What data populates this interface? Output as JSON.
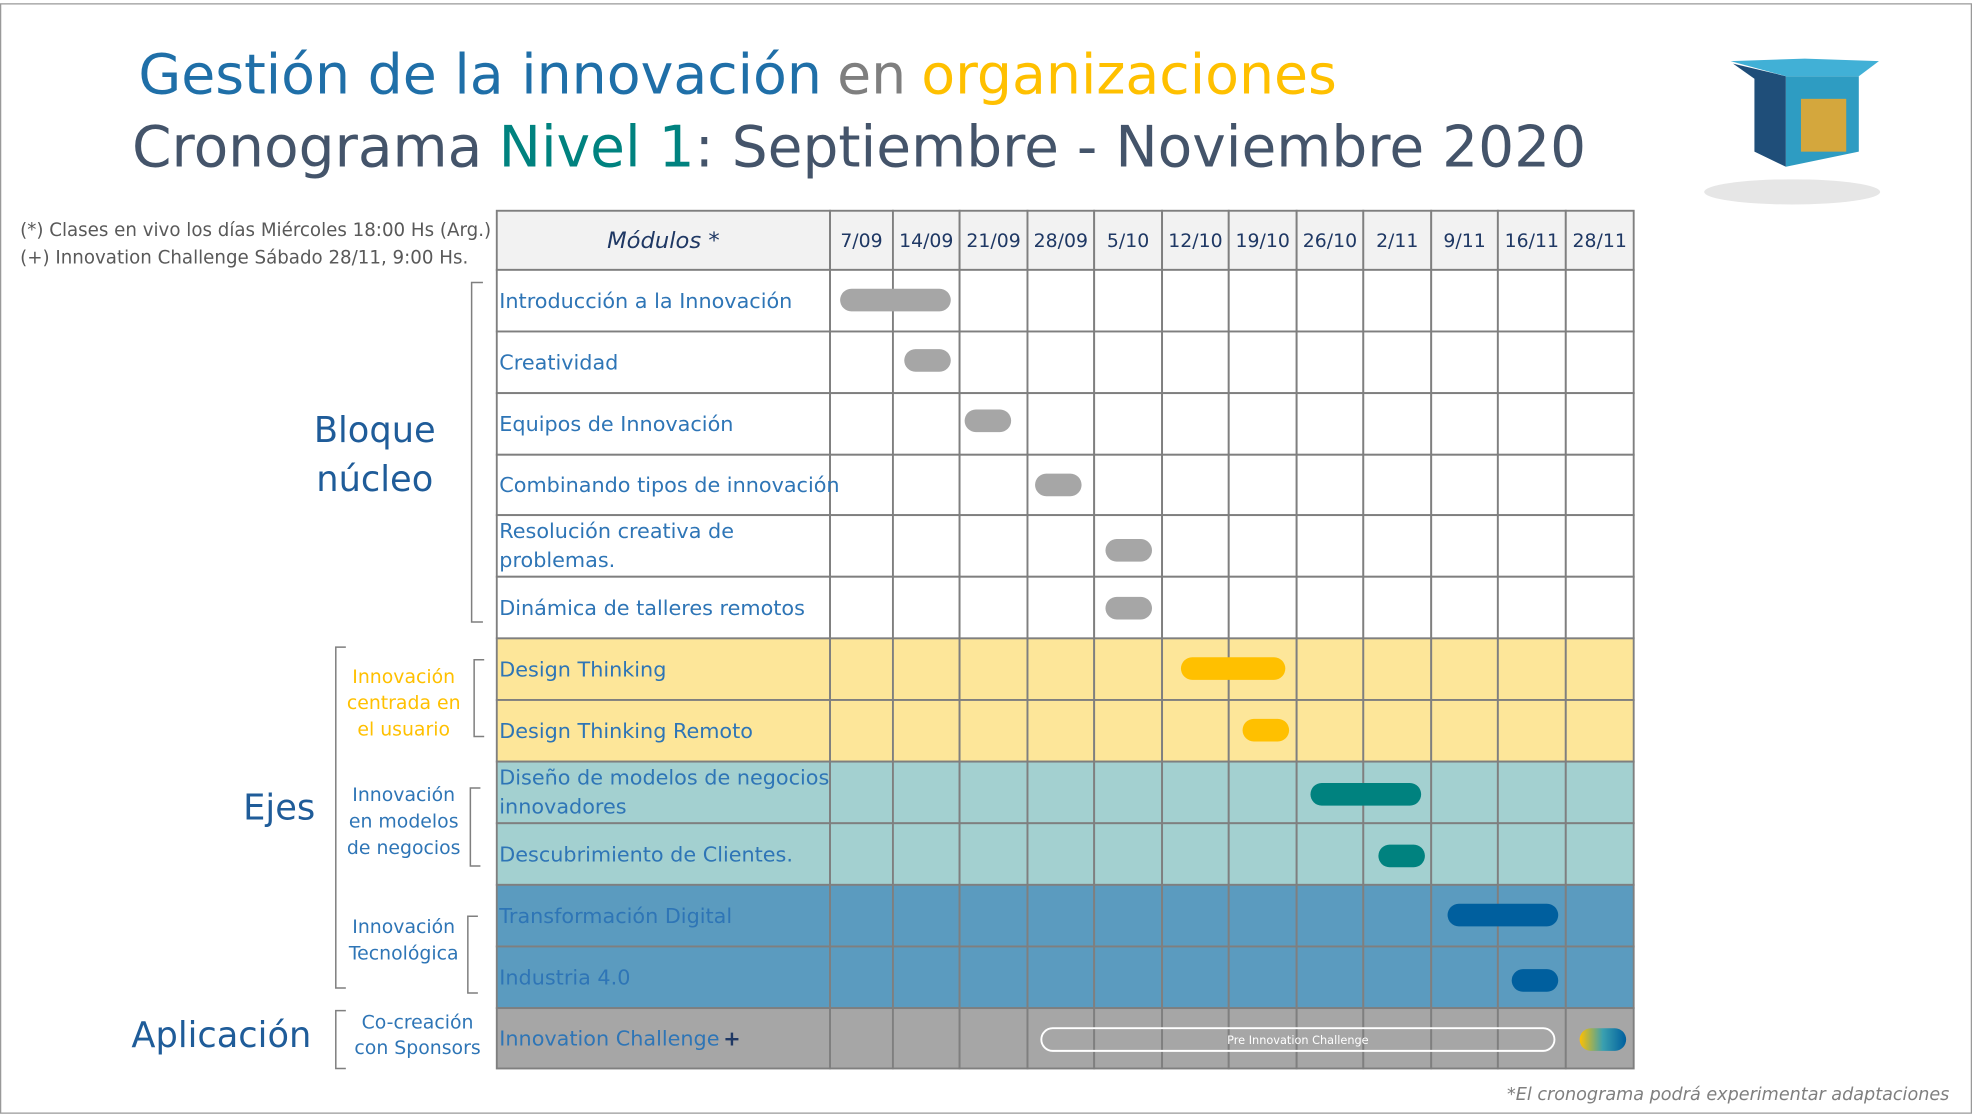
{
  "header": {
    "title_line1": [
      "Gestión de la innovación",
      "en",
      "organizaciones"
    ],
    "title_line2": [
      "Cronograma",
      "Nivel 1",
      ": Septiembre - Noviembre 2020"
    ]
  },
  "notes": [
    "(*) Clases en vivo los días Miércoles 18:00 Hs (Arg.)",
    "(+) Innovation Challenge Sábado 28/11, 9:00 Hs."
  ],
  "table": {
    "header": [
      "Módulos *",
      "7/09",
      "14/09",
      "21/09",
      "28/09",
      "5/10",
      "12/10",
      "19/10",
      "26/10",
      "2/11",
      "9/11",
      "16/11",
      "28/11"
    ],
    "rows": [
      [
        "Introducción a la Innovación"
      ],
      [
        "Creatividad"
      ],
      [
        "Equipos de Innovación"
      ],
      [
        "Combinando tipos de innovación"
      ],
      [
        "Resolución creativa de",
        "problemas."
      ],
      [
        "Dinámica de talleres remotos"
      ],
      [
        "Design Thinking"
      ],
      [
        "Design Thinking Remoto"
      ],
      [
        "Diseño de modelos de negocios",
        "innovadores"
      ],
      [
        "Descubrimiento de Clientes."
      ],
      [
        "Transformación Digital"
      ],
      [
        "Industria 4.0"
      ],
      [
        "Innovation Challenge",
        "+"
      ]
    ],
    "pre_label": "Pre Innovation Challenge"
  },
  "groups": {
    "bloque": [
      "Bloque",
      "núcleo"
    ],
    "ejes": [
      "Ejes"
    ],
    "aplicacion": [
      "Aplicación"
    ],
    "usuario": [
      "Innovación",
      "centrada en",
      "el usuario"
    ],
    "modelos": [
      "Innovación",
      "en modelos",
      "de negocios"
    ],
    "tecnologica": [
      "Innovación",
      "Tecnológica"
    ],
    "sponsors": [
      "Co-creación",
      "con Sponsors"
    ]
  },
  "footer": "*El cronograma podrá experimentar adaptaciones"
}
